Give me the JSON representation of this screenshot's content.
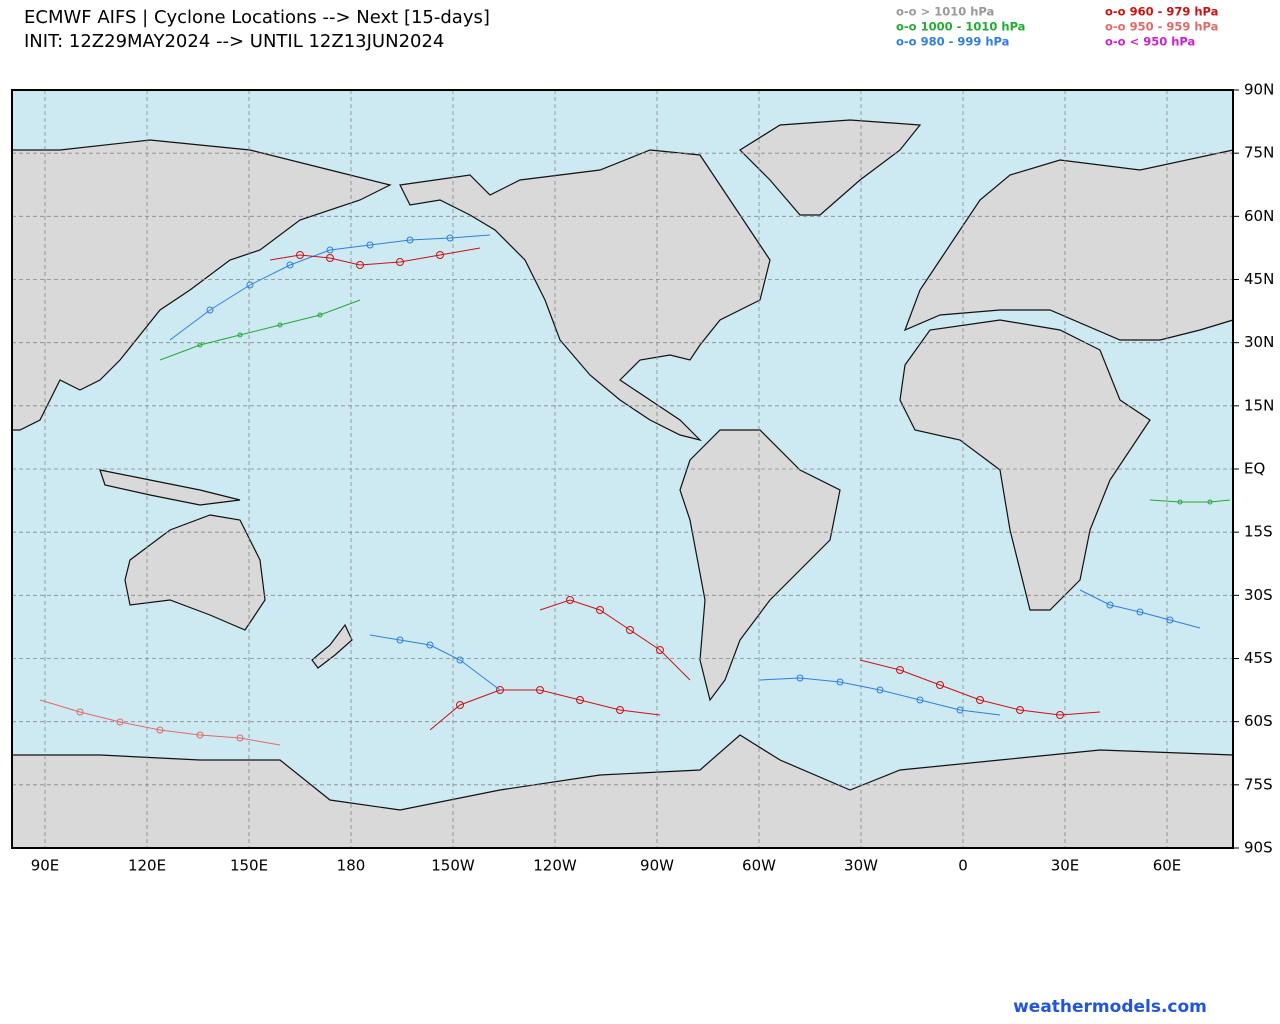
{
  "header": {
    "title": "ECMWF AIFS | Cyclone Locations --> Next [15-days]",
    "subtitle": "INIT: 12Z29MAY2024 --> UNTIL 12Z13JUN2024"
  },
  "legend": [
    {
      "label": "o-o > 1010 hPa",
      "color": "#999999"
    },
    {
      "label": "o-o 1000 - 1010 hPa",
      "color": "#22aa33"
    },
    {
      "label": "o-o 980 - 999 hPa",
      "color": "#2f7fdc"
    },
    {
      "label": "o-o 960 - 979 hPa",
      "color": "#cc1111"
    },
    {
      "label": "o-o 950 - 959 hPa",
      "color": "#e06a6a"
    },
    {
      "label": "o-o < 950 hPa",
      "color": "#cc22cc"
    }
  ],
  "map": {
    "lon_labels": [
      "90E",
      "120E",
      "150E",
      "180",
      "150W",
      "120W",
      "90W",
      "60W",
      "30W",
      "0",
      "30E",
      "60E"
    ],
    "lat_labels": [
      "90N",
      "75N",
      "60N",
      "45N",
      "30N",
      "15N",
      "EQ",
      "15S",
      "30S",
      "45S",
      "60S",
      "75S",
      "90S"
    ]
  },
  "footer": {
    "credit": "weathermodels.com"
  }
}
